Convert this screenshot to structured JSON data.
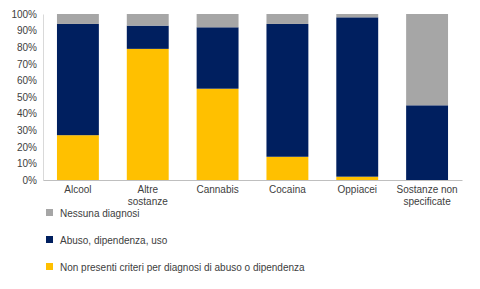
{
  "chart_data": {
    "type": "bar",
    "stacked": true,
    "grid": false,
    "legend": "bottom",
    "categories": [
      "Alcool",
      "Altre sostanze",
      "Cannabis",
      "Cocaina",
      "Oppiacei",
      "Sostanze non specificate"
    ],
    "series": [
      {
        "name": "Non presenti criteri per diagnosi di abuso o dipendenza",
        "color": "#ffc000",
        "values": [
          27,
          79,
          55,
          14,
          2,
          0
        ]
      },
      {
        "name": "Abuso, dipendenza, uso",
        "color": "#001f5f",
        "values": [
          67,
          14,
          37,
          80,
          96,
          45
        ]
      },
      {
        "name": "Nessuna diagnosi",
        "color": "#a6a6a6",
        "values": [
          6,
          7,
          8,
          6,
          2,
          55
        ]
      }
    ],
    "ylim": [
      0,
      100
    ],
    "yticks": [
      {
        "value": 0,
        "label": "0%"
      },
      {
        "value": 10,
        "label": "10%"
      },
      {
        "value": 20,
        "label": "20%"
      },
      {
        "value": 30,
        "label": "30%"
      },
      {
        "value": 40,
        "label": "40%"
      },
      {
        "value": 50,
        "label": "50%"
      },
      {
        "value": 60,
        "label": "60%"
      },
      {
        "value": 70,
        "label": "70%"
      },
      {
        "value": 80,
        "label": "80%"
      },
      {
        "value": 90,
        "label": "90%"
      },
      {
        "value": 100,
        "label": "100%"
      }
    ]
  }
}
